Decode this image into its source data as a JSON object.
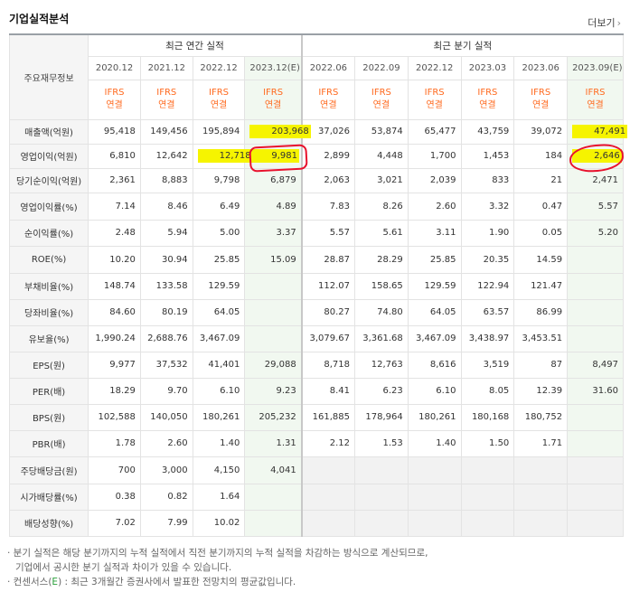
{
  "title": "기업실적분석",
  "more_label": "더보기",
  "header": {
    "row_label": "주요재무정보",
    "annual_group": "최근 연간 실적",
    "quarter_group": "최근 분기 실적",
    "annual_periods": [
      "2020.12",
      "2021.12",
      "2022.12",
      "2023.12(E)"
    ],
    "quarter_periods": [
      "2022.06",
      "2022.09",
      "2022.12",
      "2023.03",
      "2023.06",
      "2023.09(E)"
    ],
    "ifrs_top": "IFRS",
    "ifrs_bottom": "연결"
  },
  "rows": [
    {
      "label": "매출액(억원)",
      "values": [
        "95,418",
        "149,456",
        "195,894",
        "203,968",
        "37,026",
        "53,874",
        "65,477",
        "43,759",
        "39,072",
        "47,491"
      ]
    },
    {
      "label": "영업이익(억원)",
      "values": [
        "6,810",
        "12,642",
        "12,718",
        "9,981",
        "2,899",
        "4,448",
        "1,700",
        "1,453",
        "184",
        "2,646"
      ]
    },
    {
      "label": "당기순이익(억원)",
      "values": [
        "2,361",
        "8,883",
        "9,798",
        "6,879",
        "2,063",
        "3,021",
        "2,039",
        "833",
        "21",
        "2,471"
      ]
    },
    {
      "label": "영업이익률(%)",
      "values": [
        "7.14",
        "8.46",
        "6.49",
        "4.89",
        "7.83",
        "8.26",
        "2.60",
        "3.32",
        "0.47",
        "5.57"
      ]
    },
    {
      "label": "순이익률(%)",
      "values": [
        "2.48",
        "5.94",
        "5.00",
        "3.37",
        "5.57",
        "5.61",
        "3.11",
        "1.90",
        "0.05",
        "5.20"
      ]
    },
    {
      "label": "ROE(%)",
      "values": [
        "10.20",
        "30.94",
        "25.85",
        "15.09",
        "28.87",
        "28.29",
        "25.85",
        "20.35",
        "14.59",
        ""
      ]
    },
    {
      "label": "부채비율(%)",
      "values": [
        "148.74",
        "133.58",
        "129.59",
        "",
        "112.07",
        "158.65",
        "129.59",
        "122.94",
        "121.47",
        ""
      ]
    },
    {
      "label": "당좌비율(%)",
      "values": [
        "84.60",
        "80.19",
        "64.05",
        "",
        "80.27",
        "74.80",
        "64.05",
        "63.57",
        "86.99",
        ""
      ]
    },
    {
      "label": "유보율(%)",
      "values": [
        "1,990.24",
        "2,688.76",
        "3,467.09",
        "",
        "3,079.67",
        "3,361.68",
        "3,467.09",
        "3,438.97",
        "3,453.51",
        ""
      ]
    },
    {
      "label": "EPS(원)",
      "values": [
        "9,977",
        "37,532",
        "41,401",
        "29,088",
        "8,718",
        "12,763",
        "8,616",
        "3,519",
        "87",
        "8,497"
      ]
    },
    {
      "label": "PER(배)",
      "values": [
        "18.29",
        "9.70",
        "6.10",
        "9.23",
        "8.41",
        "6.23",
        "6.10",
        "8.05",
        "12.39",
        "31.60"
      ]
    },
    {
      "label": "BPS(원)",
      "values": [
        "102,588",
        "140,050",
        "180,261",
        "205,232",
        "161,885",
        "178,964",
        "180,261",
        "180,168",
        "180,752",
        ""
      ]
    },
    {
      "label": "PBR(배)",
      "values": [
        "1.78",
        "2.60",
        "1.40",
        "1.31",
        "2.12",
        "1.53",
        "1.40",
        "1.50",
        "1.71",
        ""
      ]
    },
    {
      "label": "주당배당금(원)",
      "values": [
        "700",
        "3,000",
        "4,150",
        "4,041",
        "",
        "",
        "",
        "",
        "",
        ""
      ]
    },
    {
      "label": "시가배당률(%)",
      "values": [
        "0.38",
        "0.82",
        "1.64",
        "",
        "",
        "",
        "",
        "",
        "",
        ""
      ]
    },
    {
      "label": "배당성향(%)",
      "values": [
        "7.02",
        "7.99",
        "10.02",
        "",
        "",
        "",
        "",
        "",
        "",
        ""
      ]
    }
  ],
  "notes": {
    "line1": "· 분기 실적은 해당 분기까지의 누적 실적에서 직전 분기까지의 누적 실적을 차감하는 방식으로 계산되므로,",
    "line2": "기업에서 공시한 분기 실적과 차이가 있을 수 있습니다.",
    "line3_prefix": "· 컨센서스(",
    "line3_e": "E",
    "line3_suffix": ") : 최근 3개월간 증권사에서 발표한 전망치의 평균값입니다."
  },
  "highlight_color": "#f8f800",
  "annotation_color": "#e8122d",
  "ifrs_color": "#ff6a1f",
  "estimate_bg": "#f1f8f0"
}
